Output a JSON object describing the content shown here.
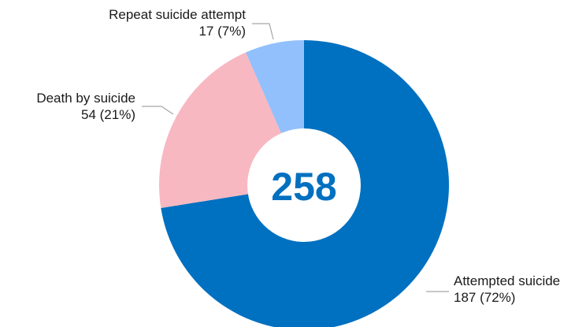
{
  "chart_data": {
    "type": "pie",
    "style": "donut",
    "center_label": "258",
    "slices": [
      {
        "label": "Attempted suicide",
        "value": 187,
        "value_text": "187 (72%)",
        "color": "#0070c0"
      },
      {
        "label": "Death by suicide",
        "value": 54,
        "value_text": "54 (21%)",
        "color": "#f8b8c1"
      },
      {
        "label": "Repeat suicide attempt",
        "value": 17,
        "value_text": "17 (7%)",
        "color": "#92c0fc"
      }
    ],
    "leader_line_color": "#a6a6a6",
    "legend": "none"
  }
}
